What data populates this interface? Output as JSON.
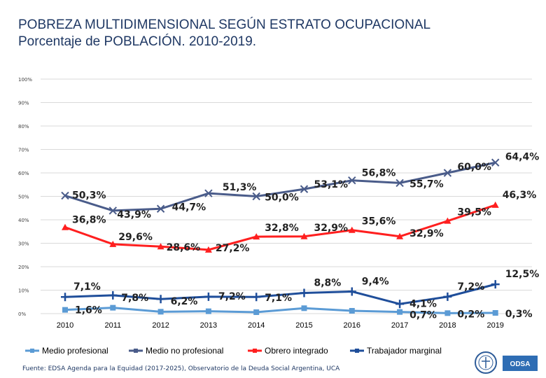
{
  "title_line1": "POBREZA MULTIDIMENSIONAL SEGÚN ESTRATO OCUPACIONAL",
  "title_line2": "Porcentaje de POBLACIÓN. 2010-2019.",
  "footnote": "Fuente: EDSA Agenda para la Equidad (2017-2025), Observatorio de la Deuda Social Argentina, UCA",
  "logo_text": "ODSA",
  "chart_data": {
    "type": "line",
    "title": "POBREZA MULTIDIMENSIONAL SEGÚN ESTRATO OCUPACIONAL",
    "subtitle": "Porcentaje de POBLACIÓN. 2010-2019.",
    "xlabel": "",
    "ylabel": "",
    "ylim": [
      0,
      100
    ],
    "yticks": [
      "0%",
      "10%",
      "20%",
      "30%",
      "40%",
      "50%",
      "60%",
      "70%",
      "80%",
      "90%",
      "100%"
    ],
    "categories": [
      "2010",
      "2011",
      "2012",
      "2013",
      "2014",
      "2015",
      "2016",
      "2017",
      "2018",
      "2019"
    ],
    "grid": true,
    "legend": "bottom",
    "series": [
      {
        "name": "Medio profesional",
        "color": "#5b9bd5",
        "marker": "square",
        "values": [
          1.6,
          2.5,
          0.8,
          1.0,
          0.6,
          2.3,
          1.2,
          0.7,
          0.2,
          0.3
        ],
        "labels": [
          "1,6%",
          "",
          "",
          "",
          "",
          "",
          "",
          "0,7%",
          "0,2%",
          "0,3%"
        ]
      },
      {
        "name": "Medio no profesional",
        "color": "#4a5c8a",
        "marker": "x",
        "values": [
          50.3,
          43.9,
          44.7,
          51.3,
          50.0,
          53.1,
          56.8,
          55.7,
          60.0,
          64.4
        ],
        "labels": [
          "50,3%",
          "43,9%",
          "44,7%",
          "51,3%",
          "50,0%",
          "53,1%",
          "56,8%",
          "55,7%",
          "60,0%",
          "64,4%"
        ]
      },
      {
        "name": "Obrero integrado",
        "color": "#ff1f1f",
        "marker": "triangle",
        "values": [
          36.8,
          29.6,
          28.6,
          27.2,
          32.8,
          32.9,
          35.6,
          32.9,
          39.5,
          46.3
        ],
        "labels": [
          "36,8%",
          "29,6%",
          "28,6%",
          "27,2%",
          "32,8%",
          "32,9%",
          "35,6%",
          "32,9%",
          "39,5%",
          "46,3%"
        ]
      },
      {
        "name": "Trabajador marginal",
        "color": "#1f4e9a",
        "marker": "cross",
        "values": [
          7.1,
          7.8,
          6.2,
          7.2,
          7.1,
          8.8,
          9.4,
          4.1,
          7.2,
          12.5
        ],
        "labels": [
          "7,1%",
          "7,8%",
          "6,2%",
          "7,2%",
          "7,1%",
          "8,8%",
          "9,4%",
          "4,1%",
          "7,2%",
          "12,5%"
        ]
      }
    ]
  }
}
